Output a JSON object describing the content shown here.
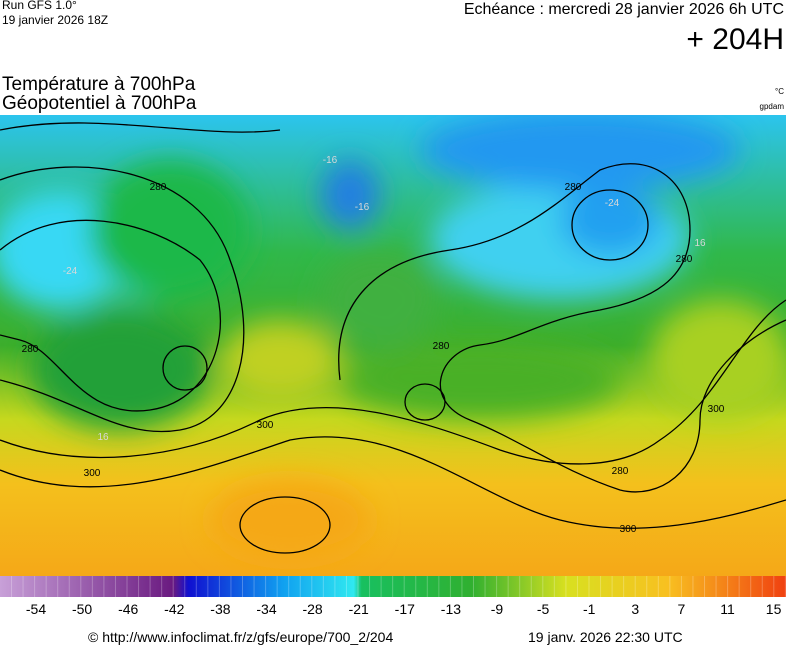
{
  "header": {
    "run": "Run GFS 1.0°",
    "init": "19 janvier 2026 18Z",
    "valid": "Echéance : mercredi 28 janvier 2026 6h UTC",
    "lead": "+ 204H"
  },
  "titles": {
    "line1": "Température à 700hPa",
    "line2": "Géopotentiel à 700hPa",
    "unit_temp": "°C",
    "unit_geo": "gpdam"
  },
  "contour_labels": [
    "280",
    "280",
    "300",
    "300",
    "300",
    "280",
    "280",
    "280",
    "300",
    "280",
    "-16",
    "-16",
    "-24",
    "-24",
    "16",
    "16"
  ],
  "colorbar": {
    "ticks": [
      -54,
      -50,
      -46,
      -42,
      -38,
      -34,
      -28,
      -21,
      -17,
      -13,
      -9,
      -5,
      -1,
      3,
      7,
      11,
      15
    ]
  },
  "footer": {
    "url": "© http://www.infoclimat.fr/z/gfs/europe/700_2/204",
    "generated": "19 janv. 2026 22:30 UTC"
  }
}
